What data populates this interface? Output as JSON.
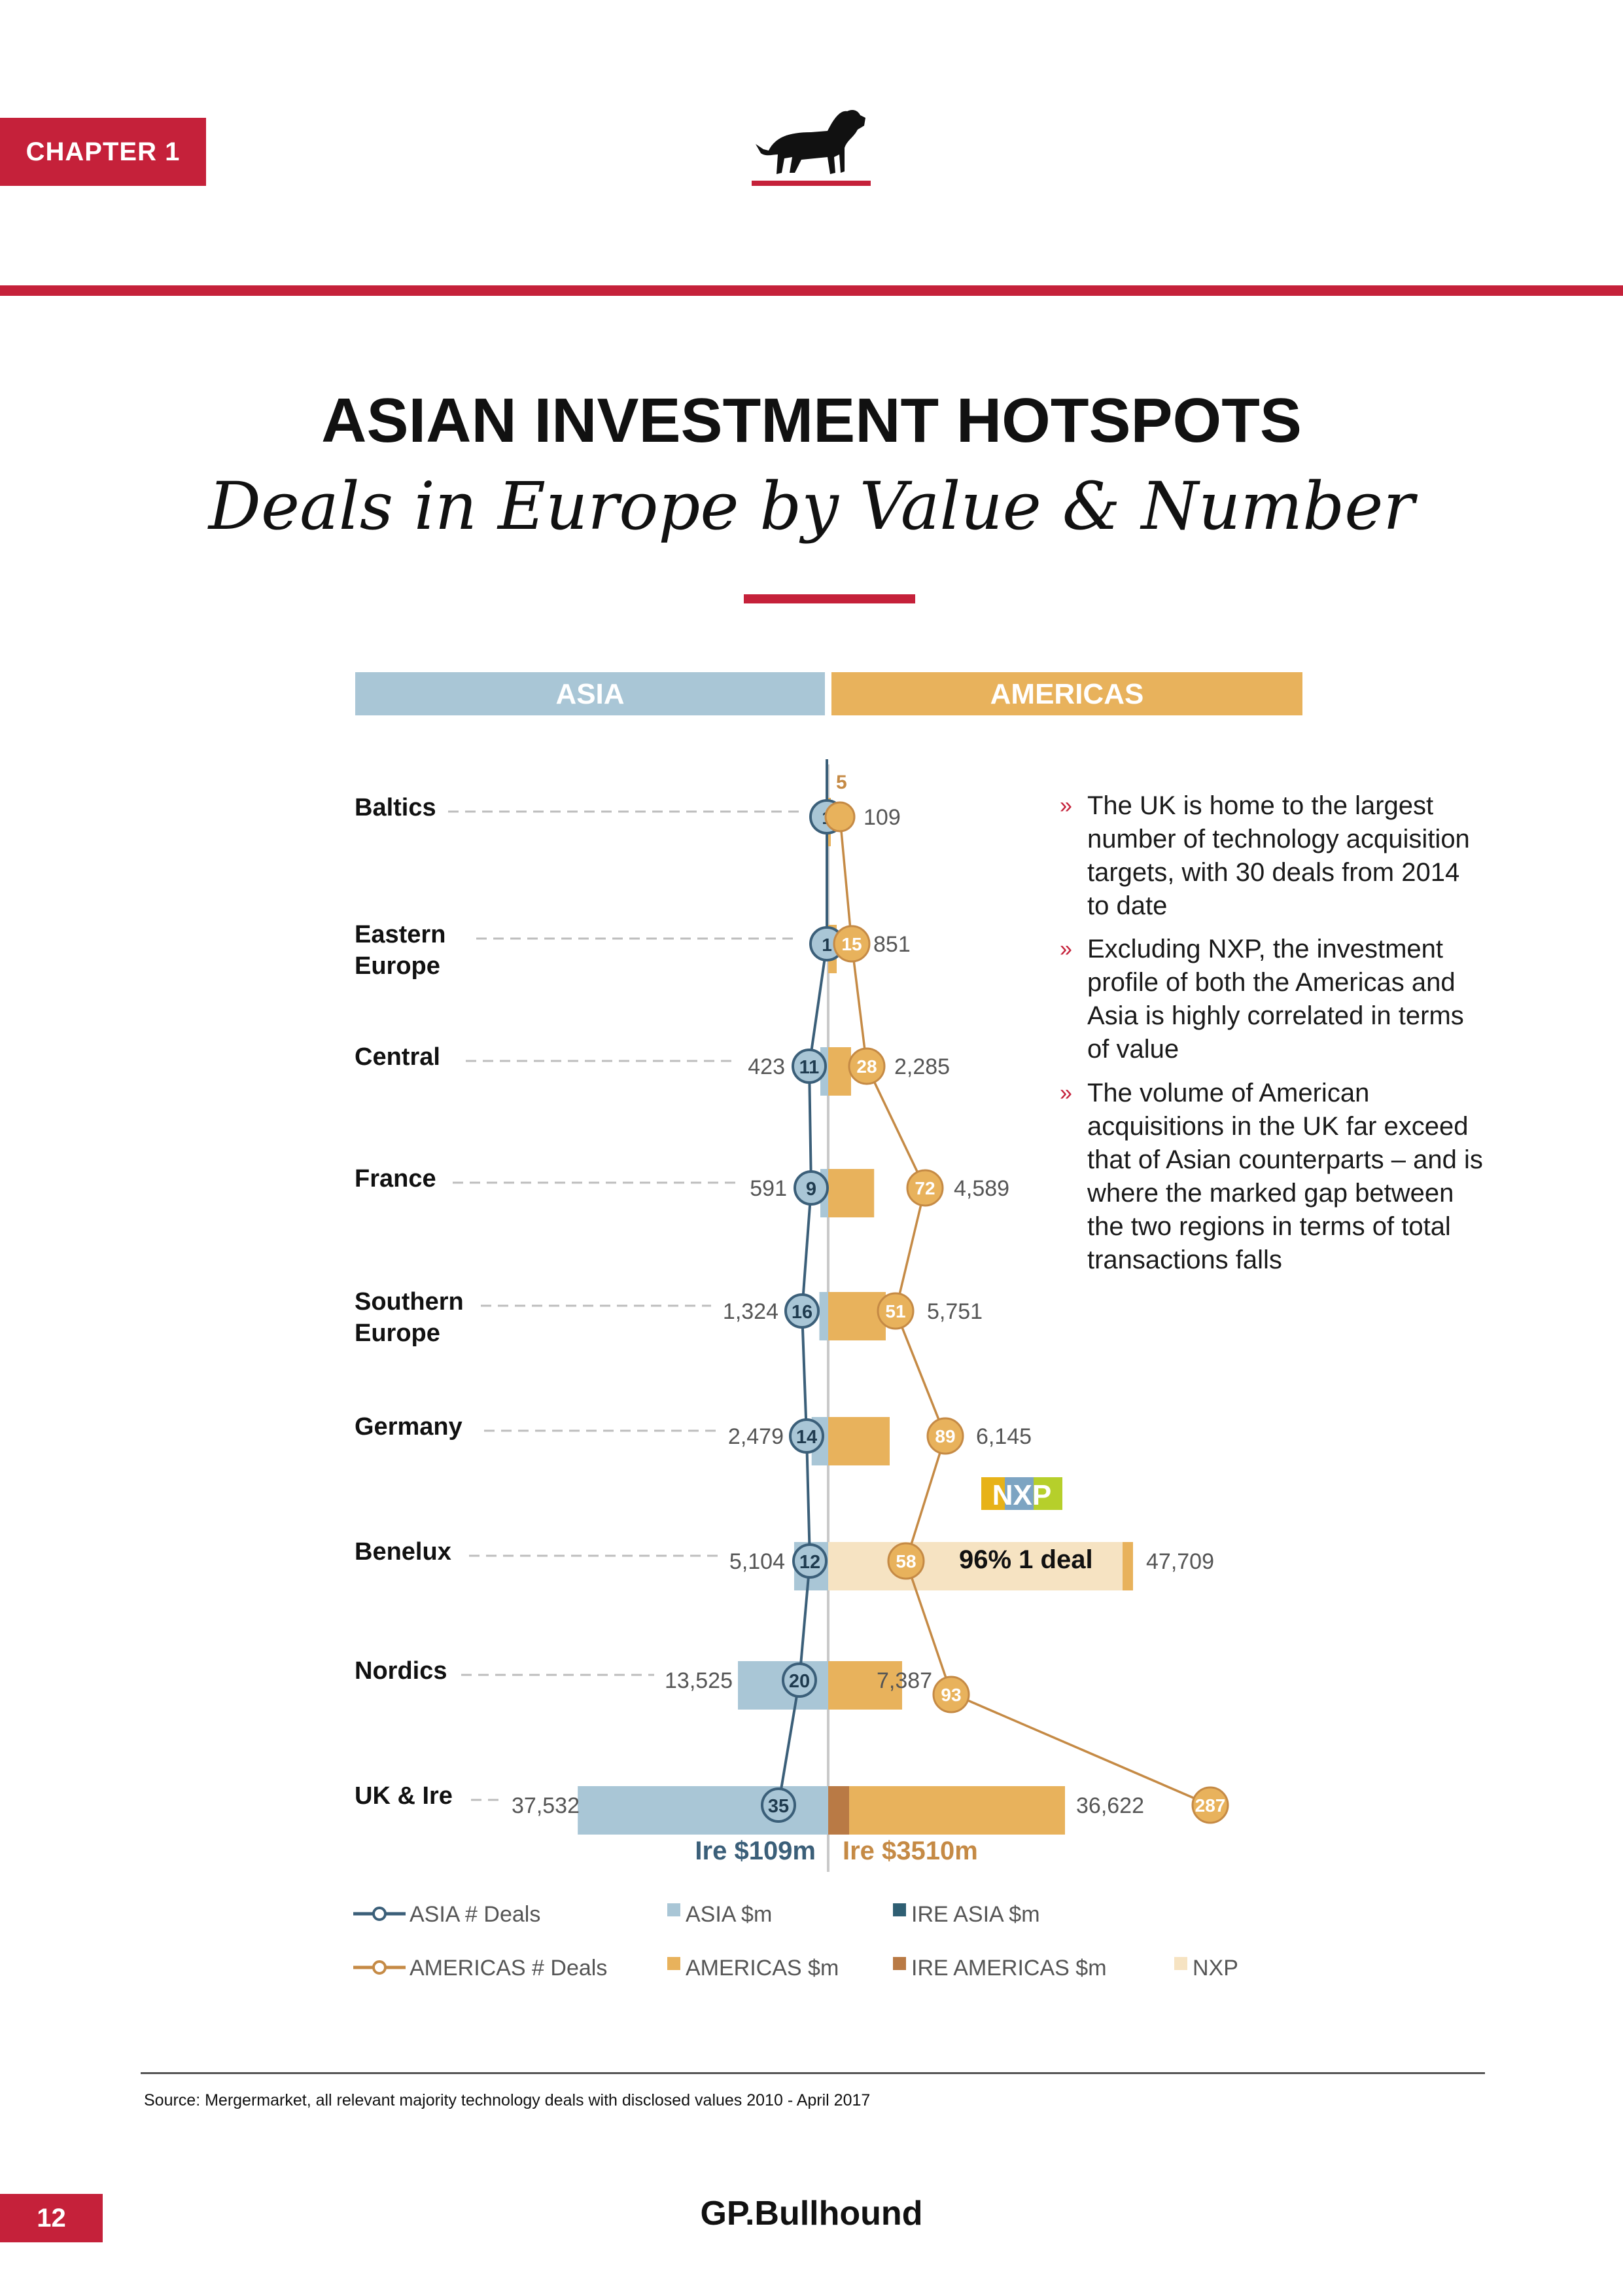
{
  "header": {
    "chapter": "CHAPTER 1",
    "logo_icon": "bulldog-icon"
  },
  "title": "ASIAN INVESTMENT HOTSPOTS",
  "subtitle": "Deals in Europe by Value & Number",
  "colors": {
    "brand_red": "#c5213a",
    "asia_bar": "#a9c6d6",
    "asia_line": "#3b5f79",
    "ire_asia": "#2f5f73",
    "americas_bar": "#e8b25c",
    "americas_line": "#c58a45",
    "ire_americas": "#b97a45",
    "nxp": "#f6e3c2"
  },
  "bullets": [
    "The UK is home to the largest number of technology acquisition targets, with 30 deals from 2014 to date",
    "Excluding NXP, the investment profile of both the Americas and Asia is highly correlated in terms of value",
    "The volume of American acquisitions in the UK far exceed that of Asian counterparts – and is where the marked gap between the two regions in terms of total transactions falls"
  ],
  "chart_data": {
    "type": "bar",
    "title": "Deals in Europe by Value & Number",
    "panels": [
      "ASIA",
      "AMERICAS"
    ],
    "categories": [
      "Baltics",
      "Eastern Europe",
      "Central",
      "France",
      "Southern Europe",
      "Germany",
      "Benelux",
      "Nordics",
      "UK & Ire"
    ],
    "category_lines": [
      [
        "Baltics"
      ],
      [
        "Eastern",
        "Europe"
      ],
      [
        "Central"
      ],
      [
        "France"
      ],
      [
        "Southern",
        "Europe"
      ],
      [
        "Germany"
      ],
      [
        "Benelux"
      ],
      [
        "Nordics"
      ],
      [
        "UK & Ire"
      ]
    ],
    "series": [
      {
        "name": "ASIA $m",
        "values": [
          null,
          null,
          423,
          591,
          1324,
          2479,
          5104,
          13525,
          37532
        ],
        "labels": [
          "",
          "",
          "423",
          "591",
          "1,324",
          "2,479",
          "5,104",
          "13,525",
          "37,532"
        ]
      },
      {
        "name": "ASIA # Deals",
        "values": [
          1,
          1,
          11,
          9,
          16,
          14,
          12,
          20,
          35
        ]
      },
      {
        "name": "AMERICAS $m",
        "values": [
          109,
          851,
          2285,
          4589,
          5751,
          6145,
          47709,
          7387,
          36622
        ],
        "labels": [
          "109",
          "851",
          "2,285",
          "4,589",
          "5,751",
          "6,145",
          "47,709",
          "7,387",
          "36,622"
        ]
      },
      {
        "name": "AMERICAS # Deals",
        "values": [
          5,
          15,
          28,
          72,
          51,
          89,
          58,
          93,
          287
        ]
      },
      {
        "name": "IRE ASIA $m",
        "values": [
          null,
          null,
          null,
          null,
          null,
          null,
          null,
          null,
          109
        ]
      },
      {
        "name": "IRE AMERICAS $m",
        "values": [
          null,
          null,
          null,
          null,
          null,
          null,
          null,
          null,
          3510
        ]
      },
      {
        "name": "NXP",
        "values": [
          null,
          null,
          null,
          null,
          null,
          null,
          45801,
          null,
          null
        ]
      }
    ],
    "annotations": {
      "nxp_logo_text": "NXP",
      "nxp_label": "96% 1 deal",
      "ire_asia_label": "Ire $109m",
      "ire_americas_label": "Ire $3510m"
    },
    "legend": [
      {
        "label": "ASIA # Deals",
        "kind": "line",
        "color": "#3b5f79"
      },
      {
        "label": "ASIA $m",
        "kind": "square",
        "color": "#a9c6d6"
      },
      {
        "label": "IRE ASIA $m",
        "kind": "square",
        "color": "#2f5f73"
      },
      {
        "label": "AMERICAS # Deals",
        "kind": "line",
        "color": "#c58a45"
      },
      {
        "label": "AMERICAS $m",
        "kind": "square",
        "color": "#e8b25c"
      },
      {
        "label": "IRE AMERICAS $m",
        "kind": "square",
        "color": "#b97a45"
      },
      {
        "label": "NXP",
        "kind": "square",
        "color": "#f6e3c2"
      }
    ]
  },
  "source": "Source: Mergermarket, all relevant majority technology deals with disclosed values 2010 - April 2017",
  "footer": {
    "page_number": "12",
    "brand": "GP.Bullhound"
  }
}
